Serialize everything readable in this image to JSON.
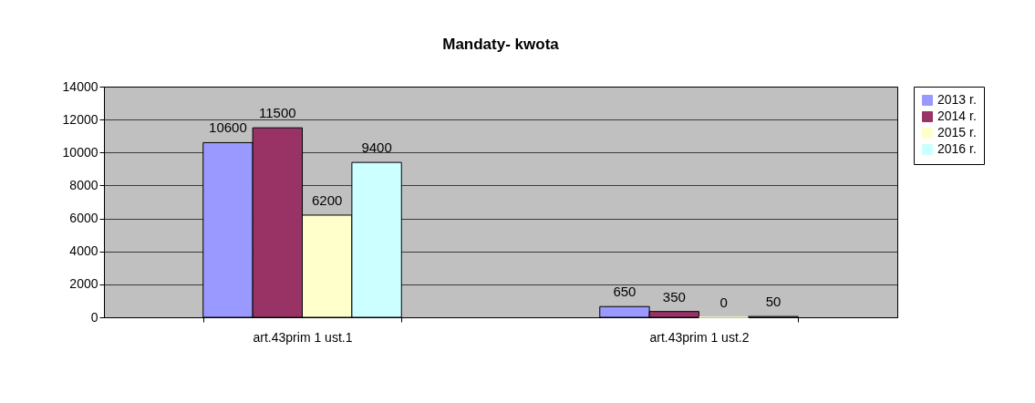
{
  "chart_data": {
    "type": "bar",
    "title": "Mandaty- kwota",
    "categories": [
      "art.43prim 1 ust.1",
      "art.43prim 1 ust.2"
    ],
    "series": [
      {
        "name": "2013 r.",
        "color": "#9999ff",
        "values": [
          10600,
          650
        ]
      },
      {
        "name": "2014 r.",
        "color": "#993366",
        "values": [
          11500,
          350
        ]
      },
      {
        "name": "2015 r.",
        "color": "#ffffcc",
        "values": [
          6200,
          0
        ]
      },
      {
        "name": "2016 r.",
        "color": "#ccffff",
        "values": [
          9400,
          50
        ]
      }
    ],
    "ylim": [
      0,
      14000
    ],
    "yticks": [
      0,
      2000,
      4000,
      6000,
      8000,
      10000,
      12000,
      14000
    ],
    "grid": "y",
    "legend": "right",
    "data_labels": true
  }
}
